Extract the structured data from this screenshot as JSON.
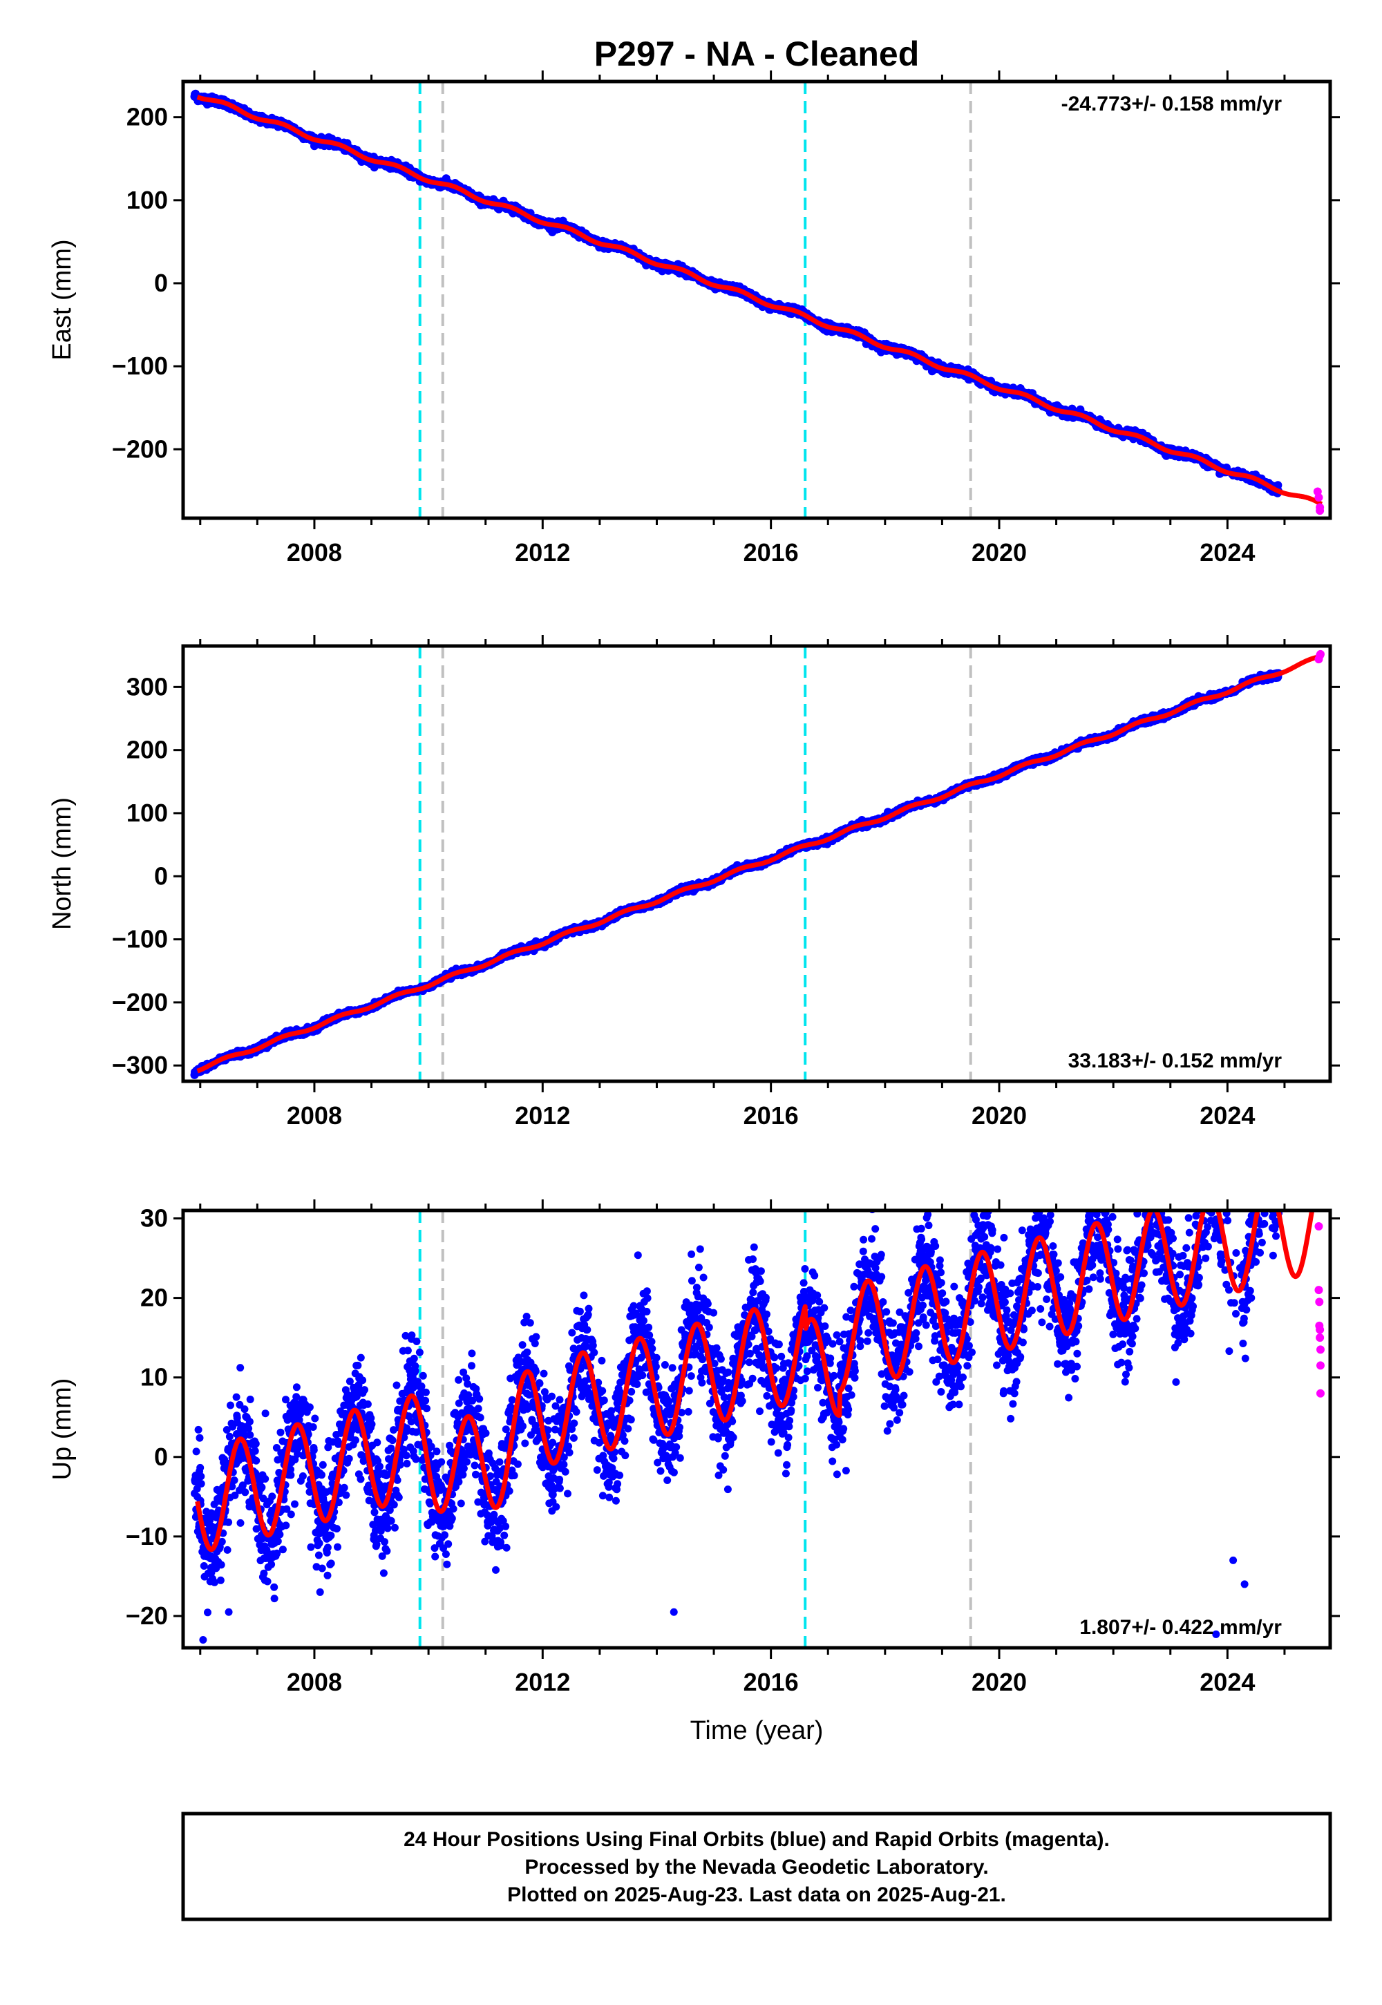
{
  "title": "P297  - NA - Cleaned",
  "xlabel": "Time (year)",
  "footer": {
    "line1": "24 Hour Positions Using Final Orbits (blue) and Rapid Orbits (magenta).",
    "line2": "Processed by the Nevada Geodetic Laboratory.",
    "line3": "Plotted on 2025-Aug-23. Last data on 2025-Aug-21."
  },
  "colors": {
    "final_orbits": "#0000ff",
    "rapid_orbits": "#ff00ff",
    "model_fit": "#ff0000",
    "cyan_marker": "#00e5ee",
    "gray_marker": "#c0c0c0"
  },
  "chart_data": [
    {
      "type": "scatter",
      "ylabel": "East (mm)",
      "rate_label": "-24.773+/- 0.158 mm/yr",
      "xlim": [
        2005.7,
        2025.8
      ],
      "ylim": [
        -283,
        243
      ],
      "yticks": [
        200,
        100,
        0,
        -100,
        -200
      ],
      "xticks": [
        2008,
        2012,
        2016,
        2020,
        2024
      ],
      "vlines_cyan": [
        2009.85,
        2016.6
      ],
      "vlines_gray": [
        2010.25,
        2019.5
      ],
      "trend": {
        "start": [
          2005.9,
          228
        ],
        "end": [
          2025.65,
          -267
        ]
      },
      "seasonal_amplitude_mm": 2.5,
      "final_orbits": {
        "x_range": [
          2005.9,
          2024.9
        ]
      },
      "rapid_orbits": {
        "x": [
          2025.58,
          2025.6,
          2025.62,
          2025.62
        ],
        "y": [
          -251,
          -258,
          -270,
          -274
        ]
      }
    },
    {
      "type": "scatter",
      "ylabel": "North (mm)",
      "rate_label": "33.183+/- 0.152 mm/yr",
      "xlim": [
        2005.7,
        2025.8
      ],
      "ylim": [
        -325,
        365
      ],
      "yticks": [
        300,
        200,
        100,
        0,
        -100,
        -200,
        -300
      ],
      "xticks": [
        2008,
        2012,
        2016,
        2020,
        2024
      ],
      "vlines_cyan": [
        2009.85,
        2016.6
      ],
      "vlines_gray": [
        2010.25,
        2019.5
      ],
      "trend": {
        "start": [
          2005.9,
          -308
        ],
        "end": [
          2025.65,
          348
        ]
      },
      "seasonal_amplitude_mm": 2.5,
      "final_orbits": {
        "x_range": [
          2005.9,
          2024.9
        ]
      },
      "rapid_orbits": {
        "x": [
          2025.6,
          2025.62,
          2025.63
        ],
        "y": [
          344,
          350,
          352
        ]
      }
    },
    {
      "type": "scatter",
      "ylabel": "Up (mm)",
      "rate_label": "1.807+/- 0.422 mm/yr",
      "xlim": [
        2005.7,
        2025.8
      ],
      "ylim": [
        -24,
        31
      ],
      "yticks": [
        30,
        20,
        10,
        0,
        -10,
        -20
      ],
      "xticks": [
        2008,
        2012,
        2016,
        2020,
        2024
      ],
      "vlines_cyan": [
        2009.85,
        2016.6
      ],
      "vlines_gray": [
        2010.25,
        2019.5
      ],
      "trend": {
        "rate_mm_per_yr": 1.807,
        "value_2006": -5.5
      },
      "seasonal_amplitude_mm": 6.5,
      "scatter_sd_mm": 3.5,
      "final_orbits": {
        "x_range": [
          2005.9,
          2024.9
        ]
      },
      "rapid_orbits": {
        "x": [
          2025.6,
          2025.6,
          2025.61,
          2025.61,
          2025.62,
          2025.62,
          2025.63,
          2025.63,
          2025.63
        ],
        "y": [
          29,
          21,
          19.5,
          16.5,
          16,
          15,
          13.5,
          11.5,
          8
        ]
      }
    }
  ]
}
